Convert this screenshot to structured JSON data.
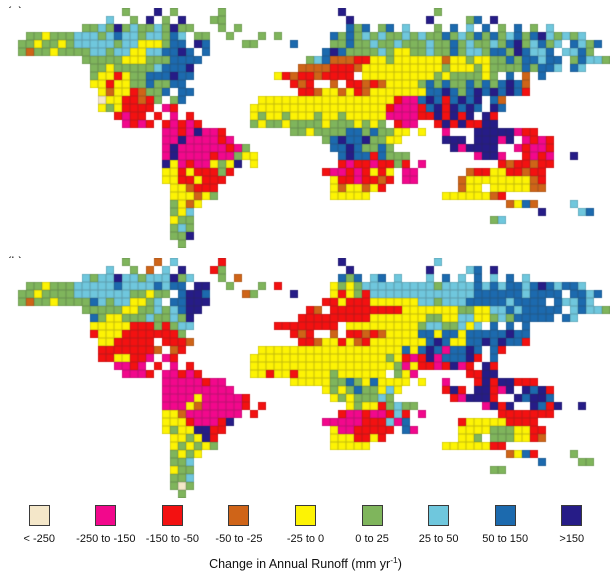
{
  "figure": {
    "panels": [
      {
        "label": "(a)"
      },
      {
        "label": "(b)"
      }
    ],
    "caption": {
      "prefix": "Change in Annual Runoff (mm yr",
      "superscript": "-1",
      "suffix": ")"
    }
  },
  "legend": {
    "items": [
      {
        "label": "< -250",
        "color": "#F4E7C9"
      },
      {
        "label": "-250 to -150",
        "color": "#F2088C"
      },
      {
        "label": "-150 to -50",
        "color": "#F31111"
      },
      {
        "label": "-50 to -25",
        "color": "#CF6418"
      },
      {
        "label": "-25 to 0",
        "color": "#FDF304"
      },
      {
        "label": "0 to 25",
        "color": "#7FB55C"
      },
      {
        "label": "25 to 50",
        "color": "#6FC7DD"
      },
      {
        "label": "50 to 150",
        "color": "#1C6AAE"
      },
      {
        "label": ">150",
        "color": "#261C87"
      }
    ]
  },
  "palette": {
    "0": "#F4E7C9",
    "1": "#F2088C",
    "2": "#F31111",
    "3": "#CF6418",
    "4": "#FDF304",
    "5": "#7FB55C",
    "6": "#6FC7DD",
    "7": "#1C6AAE",
    "8": "#261C87"
  },
  "grid_meta": {
    "cols": 76,
    "rows": 30,
    "cell": 8,
    "ocean": "#FFFFFF"
  },
  "maps": [
    {
      "name": "panel-a",
      "grid": [
        "...............5...8.5.....5..............8...........5..................",
        ".............6..5.8.5.8...55...............8.........8....57.8............",
        "..........55658565565855...5.5.............757.57.6...5.7.6.7.5.7.5.6.....",
        "...55455566656766566576 55..5...5.5......75756565565655756575756757865656....",
        "..554554566666566444577 87....55....7....55755655655565575655657856756 7657...",
        "..5355455556656644667787 7..............78755556544556557566577587667 6675...",
        "..........555554445557777.............56733322445444444344544557577677 57665...",
        "...........5545555567778.............333322234444444444544454555575776 76....",
        "...........5442455777877..........4232232222.44444444454555545 7.3.7.......",
        "...........442445575577.............232..3.22323444457575575757873........",
        "............434423557 77.............22344342344444447787578787872.........",
        "............04422325 57.........4444444444444444421178727878 73............",
        "............4542222 12.........44444444444444444211127828787 87............",
        "..............2122.2.1.2.......4544544454454444411112282828.82............",
        "...............1212.21212......54554555545554545.211..28282288............",
        "....................11218112........554555577575544 4..1...88888122............",
        "....................118111121...........5787785544.....888.88818.1212.......",
        "....................18111111215..........77875575.......818888..12112.......",
        "....................181111211544..........787727555........1881..2121..8.....",
        "....................8412114548 4..........212212252 1.........2322322.........",
        "....................442422252...........211212424 11......3224422322.........",
        "....................44224222.............42212232.11.....34444444432.........",
        ".....................443222..............4344342.........344 4444433.........",
        ".....................444345..............44444.........44444432...........",
        ".....................5434......................................3473....6.....",
        ".....................546...........................................8....67.....",
        ".....................455.....................................56.....",
        ".....................565.................................................",
        ".....................558.................................................",
        "......................5.................................................."
      ]
    },
    {
      "name": "panel-b",
      "grid": [
        "...............5...3.6.....2..............8...........6..................",
        ".............6..5.3.6.8...25...............8.........8....67.8............",
        "..........65668665666856...5.3............757.67.6...6.7.6.7.6.7.6.......",
        "...55455566666766667677 88..5...5.2......45456666666665666676767767876776....",
        "..5545555666666655455 7887....35....8....42452666666666666677777767777 7767...",
        "..535545555765664456 77888..............2242224444446656667777767777 76676...",
        "..........555554455656788.............23.22222222244444445544667677777 67665...",
        "...........7544555655658.............22222222244444445544664456577777 76....",
        "...........4444422252566..........22222222.44444444456655646 7.7.7.......",
        "...........244422222225.............232..3.22323444477477477777877........",
        "............4422222 2223.............22344243244444447874477878772.........",
        "............22222223 32.........4444444444444444447478717787 72............",
        "............2244221 12.........44444444444444444542128177782 7............",
        "..............1121.2.1.2.......4444444444444444445142212812.82............",
        "...............1112.11212......44244244445444444.541......2288............",
        "....................11111211........444445575474444 4..1...28288222............",
        "....................111111111...........4545755464.....282.88218.8782.......",
        "....................11114111112..........45455565.......218882..87887.......",
        "....................11143111112 2..........454425655........1828..8728..8.....",
        "....................4431111111 2..........211211262 1.........2222222.........",
        "....................444211128...........11111222617......2444442222.........",
        "....................45448822.............41122222.71.....44445554422.........",
        ".....................445482..............4442242.........445 5554423.........",
        ".....................454545..............44444.........44444422...........",
        ".....................5454......................................3472....5.....",
        ".....................556...........................................7....55.....",
        ".....................455.....................................55.....",
        ".....................556.................................................",
        ".....................505.................................................",
        "......................5.................................................."
      ]
    }
  ]
}
